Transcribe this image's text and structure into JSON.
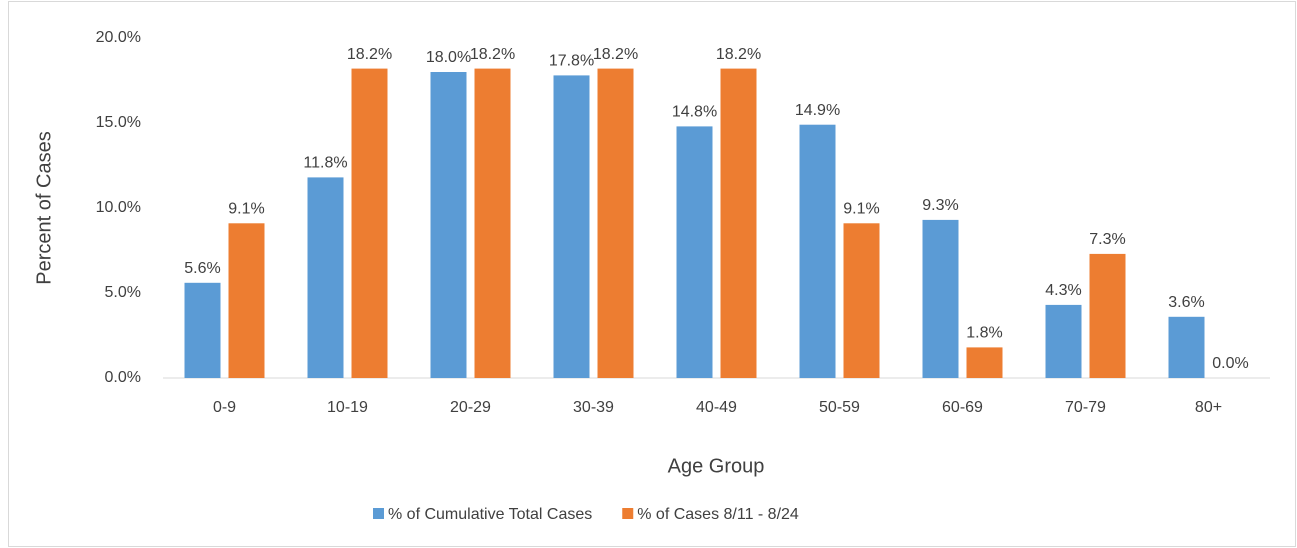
{
  "chart_data": {
    "type": "bar",
    "x_label": "Age Group",
    "y_label": "Percent of Cases",
    "categories": [
      "0-9",
      "10-19",
      "20-29",
      "30-39",
      "40-49",
      "50-59",
      "60-69",
      "70-79",
      "80+"
    ],
    "series": [
      {
        "name": "% of Cumulative Total Cases",
        "color": "#5b9bd5",
        "values": [
          5.6,
          11.8,
          18.0,
          17.8,
          14.8,
          14.9,
          9.3,
          4.3,
          3.6
        ],
        "value_labels": [
          "5.6%",
          "11.8%",
          "18.0%",
          "17.8%",
          "14.8%",
          "14.9%",
          "9.3%",
          "4.3%",
          "3.6%"
        ]
      },
      {
        "name": "% of Cases 8/11 - 8/24",
        "color": "#ed7d31",
        "values": [
          9.1,
          18.2,
          18.2,
          18.2,
          18.2,
          9.1,
          1.8,
          7.3,
          0.0
        ],
        "value_labels": [
          "9.1%",
          "18.2%",
          "18.2%",
          "18.2%",
          "18.2%",
          "9.1%",
          "1.8%",
          "7.3%",
          "0.0%"
        ]
      }
    ],
    "ylim": [
      0,
      20
    ],
    "yticks": [
      {
        "value": 0,
        "label": "0.0%"
      },
      {
        "value": 5,
        "label": "5.0%"
      },
      {
        "value": 10,
        "label": "10.0%"
      },
      {
        "value": 15,
        "label": "15.0%"
      },
      {
        "value": 20,
        "label": "20.0%"
      }
    ],
    "grid": false,
    "legend": "bottom"
  }
}
